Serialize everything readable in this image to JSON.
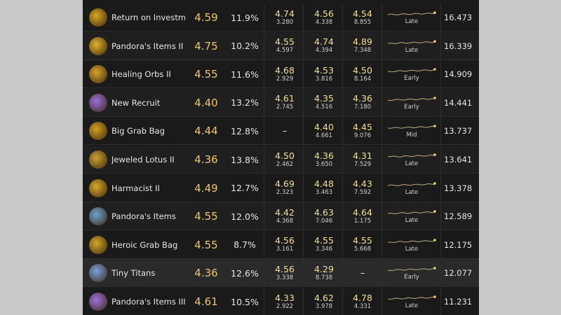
{
  "table": {
    "rows": [
      {
        "name": "Return on Investment",
        "score": "4.59",
        "pick": "11.9%",
        "stats": [
          [
            "4.74",
            "3.280"
          ],
          [
            "4.56",
            "4.338"
          ],
          [
            "4.54",
            "8.855"
          ]
        ],
        "phase": "Late",
        "total": "16.473"
      },
      {
        "name": "Pandora's Items II",
        "score": "4.75",
        "pick": "10.2%",
        "stats": [
          [
            "4.55",
            "4.597"
          ],
          [
            "4.74",
            "4.394"
          ],
          [
            "4.89",
            "7.348"
          ]
        ],
        "phase": "Late",
        "total": "16.339"
      },
      {
        "name": "Healing Orbs II",
        "score": "4.55",
        "pick": "11.6%",
        "stats": [
          [
            "4.68",
            "2.929"
          ],
          [
            "4.53",
            "3.816"
          ],
          [
            "4.50",
            "8.164"
          ]
        ],
        "phase": "Early",
        "total": "14.909"
      },
      {
        "name": "New Recruit",
        "score": "4.40",
        "pick": "13.2%",
        "stats": [
          [
            "4.61",
            "2.745"
          ],
          [
            "4.35",
            "4.516"
          ],
          [
            "4.36",
            "7.180"
          ]
        ],
        "phase": "Early",
        "total": "14.441"
      },
      {
        "name": "Big Grab Bag",
        "score": "4.44",
        "pick": "12.8%",
        "stats": [
          "–",
          [
            "4.40",
            "4.661"
          ],
          [
            "4.45",
            "9.076"
          ]
        ],
        "phase": "Mid",
        "total": "13.737"
      },
      {
        "name": "Jeweled Lotus II",
        "score": "4.36",
        "pick": "13.8%",
        "stats": [
          [
            "4.50",
            "2.462"
          ],
          [
            "4.36",
            "3.650"
          ],
          [
            "4.31",
            "7.529"
          ]
        ],
        "phase": "Late",
        "total": "13.641"
      },
      {
        "name": "Harmacist II",
        "score": "4.49",
        "pick": "12.7%",
        "stats": [
          [
            "4.69",
            "2.323"
          ],
          [
            "4.48",
            "3.463"
          ],
          [
            "4.43",
            "7.592"
          ]
        ],
        "phase": "Late",
        "total": "13.378"
      },
      {
        "name": "Pandora's Items",
        "score": "4.55",
        "pick": "12.0%",
        "stats": [
          [
            "4.42",
            "4.368"
          ],
          [
            "4.63",
            "7.046"
          ],
          [
            "4.64",
            "1.175"
          ]
        ],
        "phase": "Late",
        "total": "12.589"
      },
      {
        "name": "Heroic Grab Bag",
        "score": "4.55",
        "pick": "8.7%",
        "stats": [
          [
            "4.56",
            "3.161"
          ],
          [
            "4.55",
            "3.346"
          ],
          [
            "4.55",
            "5.668"
          ]
        ],
        "phase": "Late",
        "total": "12.175"
      },
      {
        "name": "Tiny Titans",
        "score": "4.36",
        "pick": "12.6%",
        "stats": [
          [
            "4.56",
            "3.338"
          ],
          [
            "4.29",
            "8.738"
          ],
          "–"
        ],
        "phase": "Early",
        "total": "12.077"
      },
      {
        "name": "Pandora's Items III",
        "score": "4.61",
        "pick": "10.5%",
        "stats": [
          [
            "4.33",
            "2.922"
          ],
          [
            "4.62",
            "3.978"
          ],
          [
            "4.78",
            "4.331"
          ]
        ],
        "phase": "Late",
        "total": "11.231"
      }
    ]
  }
}
